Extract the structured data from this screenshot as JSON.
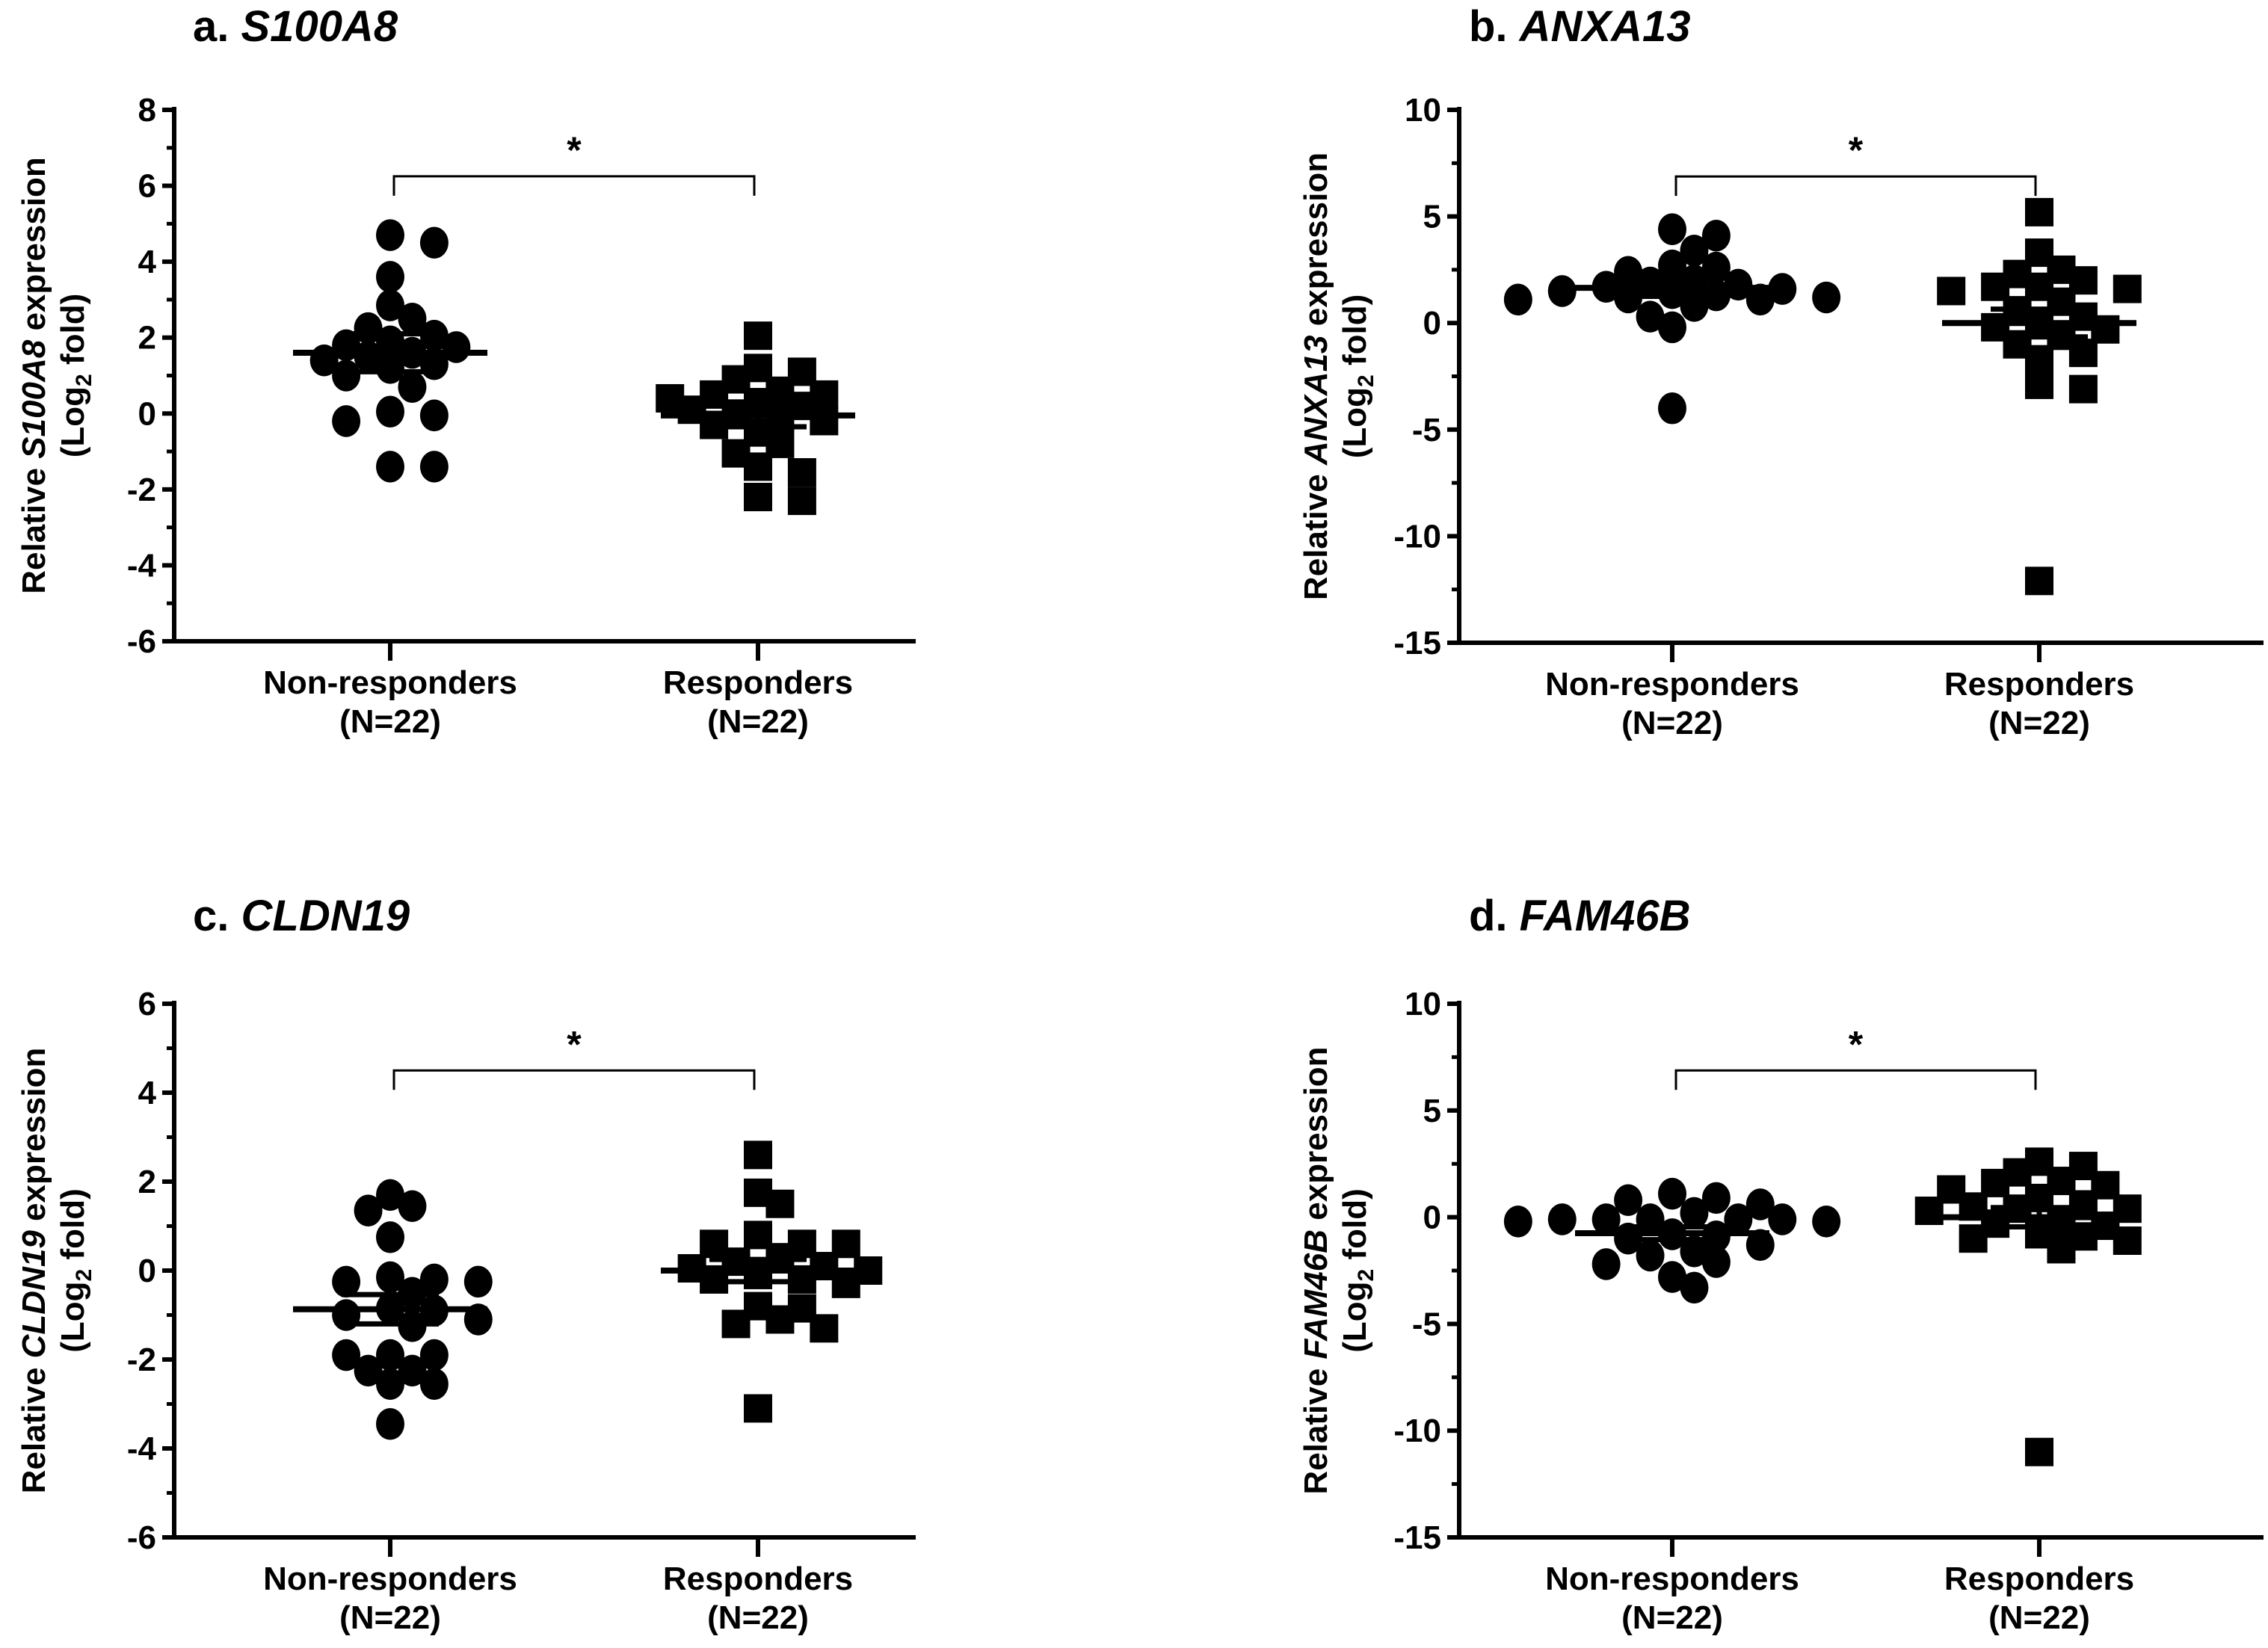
{
  "chart_data": [
    {
      "type": "scatter",
      "panel_letter": "a.",
      "gene": "S100A8",
      "ylabel_prefix": "Relative",
      "ylabel_suffix": "expression",
      "ylabel_line2": "(Log2 fold)",
      "ylim": [
        -6,
        8
      ],
      "yticks": [
        8,
        6,
        4,
        2,
        0,
        -2,
        -4,
        -6
      ],
      "significance": "*",
      "groups": [
        {
          "name": "Non-responders",
          "n_label": "(N=22)",
          "marker": "circle",
          "mean": 1.6,
          "sem": 0.5,
          "values": [
            4.7,
            4.5,
            3.6,
            2.85,
            2.5,
            2.25,
            2.05,
            1.75,
            1.9,
            1.6,
            1.4,
            1.3,
            1.5,
            1.0,
            0.7,
            -0.05,
            0.05,
            -0.2,
            -1.4,
            -1.4,
            1.8,
            1.2
          ]
        },
        {
          "name": "Responders",
          "n_label": "(N=22)",
          "marker": "square",
          "mean": -0.05,
          "sem": 0.3,
          "values": [
            2.05,
            1.2,
            0.9,
            1.1,
            0.6,
            0.5,
            0.5,
            0.4,
            0.2,
            0.1,
            -0.1,
            -0.3,
            0.0,
            0.3,
            -0.2,
            -0.5,
            -0.8,
            -1.05,
            -1.4,
            -1.55,
            -2.2,
            -2.3
          ]
        }
      ]
    },
    {
      "type": "scatter",
      "panel_letter": "b.",
      "gene": "ANXA13",
      "ylabel_prefix": "Relative",
      "ylabel_suffix": "expression",
      "ylabel_line2": "(Log2 fold)",
      "ylim": [
        -15,
        10
      ],
      "yticks": [
        10,
        5,
        0,
        -5,
        -10,
        -15
      ],
      "significance": "*",
      "groups": [
        {
          "name": "Non-responders",
          "n_label": "(N=22)",
          "marker": "circle",
          "mean": 1.65,
          "sem": 0.4,
          "values": [
            2.7,
            2.4,
            4.1,
            3.4,
            4.4,
            2.6,
            2.0,
            1.9,
            1.2,
            1.1,
            1.5,
            1.3,
            1.6,
            1.2,
            0.8,
            1.1,
            0.3,
            -0.2,
            -4.0,
            1.8,
            1.4,
            1.7
          ]
        },
        {
          "name": "Responders",
          "n_label": "(N=22)",
          "marker": "square",
          "mean": 0.0,
          "sem": 0.65,
          "values": [
            5.2,
            3.3,
            2.3,
            2.5,
            1.7,
            1.6,
            1.5,
            1.7,
            2.0,
            1.0,
            0.6,
            0.0,
            -0.3,
            -0.2,
            -1.0,
            -1.4,
            -1.7,
            -2.9,
            -3.1,
            -12.1,
            0.3,
            -0.6
          ]
        }
      ]
    },
    {
      "type": "scatter",
      "panel_letter": "c.",
      "gene": "CLDN19",
      "ylabel_prefix": "Relative",
      "ylabel_suffix": "expression",
      "ylabel_line2": "(Log2 fold)",
      "ylim": [
        -6,
        6
      ],
      "yticks": [
        6,
        4,
        2,
        0,
        -2,
        -4,
        -6
      ],
      "significance": "*",
      "groups": [
        {
          "name": "Non-responders",
          "n_label": "(N=22)",
          "marker": "circle",
          "mean": -0.87,
          "sem": 0.33,
          "values": [
            1.7,
            1.45,
            1.35,
            0.75,
            -0.15,
            -0.25,
            -0.25,
            -0.2,
            -0.5,
            -0.85,
            -1.1,
            -1.25,
            -1.9,
            -1.9,
            -1.9,
            -2.25,
            -2.25,
            -2.55,
            -2.55,
            -3.45,
            -0.9,
            -1.0
          ]
        },
        {
          "name": "Responders",
          "n_label": "(N=22)",
          "marker": "square",
          "mean": 0.0,
          "sem": 0.25,
          "values": [
            2.6,
            1.75,
            1.5,
            0.8,
            0.6,
            0.6,
            0.6,
            0.2,
            0.1,
            0.05,
            -0.1,
            -0.2,
            -0.2,
            -0.3,
            -0.8,
            -0.85,
            -1.1,
            -1.2,
            -1.3,
            -3.1,
            0.0,
            0.3
          ]
        }
      ]
    },
    {
      "type": "scatter",
      "panel_letter": "d.",
      "gene": "FAM46B",
      "ylabel_prefix": "Relative",
      "ylabel_suffix": "expression",
      "ylabel_line2": "(Log2 fold)",
      "ylim": [
        -15,
        10
      ],
      "yticks": [
        10,
        5,
        0,
        -5,
        -10,
        -15
      ],
      "significance": "*",
      "groups": [
        {
          "name": "Non-responders",
          "n_label": "(N=22)",
          "marker": "circle",
          "mean": -0.75,
          "sem": 0.3,
          "values": [
            1.1,
            0.9,
            0.2,
            -0.1,
            -0.1,
            -0.2,
            -0.1,
            -0.8,
            -1.0,
            -1.3,
            -1.8,
            -2.1,
            -2.2,
            -2.8,
            -3.3,
            0.8,
            0.6,
            -1.6,
            -0.1,
            -0.2,
            -0.1,
            -0.9
          ]
        },
        {
          "name": "Responders",
          "n_label": "(N=22)",
          "marker": "square",
          "mean": 0.0,
          "sem": 0.45,
          "values": [
            2.6,
            2.1,
            2.4,
            1.6,
            1.3,
            1.7,
            1.5,
            0.9,
            0.4,
            0.4,
            0.3,
            0.5,
            -0.8,
            -1.0,
            -1.1,
            -0.9,
            -1.5,
            -0.3,
            -0.2,
            0.6,
            -0.4,
            -11.0
          ]
        }
      ]
    }
  ]
}
